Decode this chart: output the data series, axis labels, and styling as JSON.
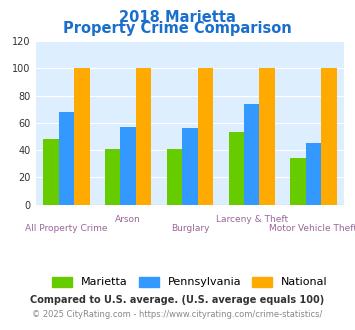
{
  "title_line1": "2018 Marietta",
  "title_line2": "Property Crime Comparison",
  "title_color": "#1a6fcc",
  "categories": [
    "All Property Crime",
    "Arson",
    "Burglary",
    "Larceny & Theft",
    "Motor Vehicle Theft"
  ],
  "xlabel_top": [
    "",
    "Arson",
    "",
    "Larceny & Theft",
    ""
  ],
  "xlabel_bot": [
    "All Property Crime",
    "",
    "Burglary",
    "",
    "Motor Vehicle Theft"
  ],
  "marietta": [
    48,
    41,
    41,
    53,
    34
  ],
  "pennsylvania": [
    68,
    57,
    56,
    74,
    45
  ],
  "national": [
    100,
    100,
    100,
    100,
    100
  ],
  "bar_color_marietta": "#66cc00",
  "bar_color_pennsylvania": "#3399ff",
  "bar_color_national": "#ffaa00",
  "ylim": [
    0,
    120
  ],
  "yticks": [
    0,
    20,
    40,
    60,
    80,
    100,
    120
  ],
  "xlabel_color": "#996699",
  "legend_labels": [
    "Marietta",
    "Pennsylvania",
    "National"
  ],
  "footnote1": "Compared to U.S. average. (U.S. average equals 100)",
  "footnote2": "© 2025 CityRating.com - https://www.cityrating.com/crime-statistics/",
  "footnote1_color": "#333333",
  "footnote2_color": "#888888",
  "plot_bg_color": "#ddeeff",
  "fig_bg_color": "#ffffff"
}
